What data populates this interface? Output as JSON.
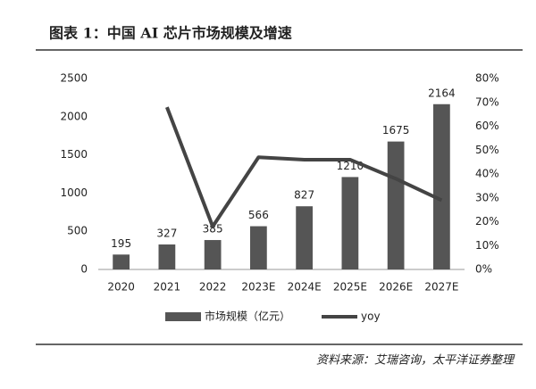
{
  "chart_data": {
    "type": "combo",
    "title": "图表 1：中国 AI 芯片市场规模及增速",
    "source": "资料来源：艾瑞咨询，太平洋证券整理",
    "categories": [
      "2020",
      "2021",
      "2022",
      "2023E",
      "2024E",
      "2025E",
      "2026E",
      "2027E"
    ],
    "series": [
      {
        "name": "市场规模（亿元）",
        "type": "bar",
        "color": "#555555",
        "values": [
          195,
          327,
          385,
          566,
          827,
          1210,
          1675,
          2164
        ]
      },
      {
        "name": "yoy",
        "type": "line",
        "axis": "y2",
        "color": "#444444",
        "values": [
          null,
          68,
          18,
          47,
          46,
          46,
          38,
          29
        ]
      }
    ],
    "ylim": [
      0,
      2500
    ],
    "yticks": [
      0,
      500,
      1000,
      1500,
      2000,
      2500
    ],
    "y2lim": [
      0,
      80
    ],
    "y2ticks": [
      {
        "value": 0,
        "label": "0%"
      },
      {
        "value": 10,
        "label": "10%"
      },
      {
        "value": 20,
        "label": "20%"
      },
      {
        "value": 30,
        "label": "30%"
      },
      {
        "value": 40,
        "label": "40%"
      },
      {
        "value": 50,
        "label": "50%"
      },
      {
        "value": 60,
        "label": "60%"
      },
      {
        "value": 70,
        "label": "70%"
      },
      {
        "value": 80,
        "label": "80%"
      }
    ],
    "grid": false,
    "legend": "bottom"
  }
}
